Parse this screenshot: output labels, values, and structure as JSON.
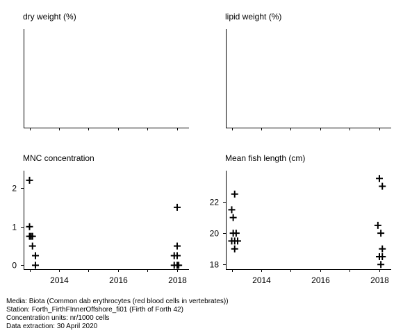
{
  "chart_data": [
    {
      "type": "scatter",
      "title": "dry weight (%)",
      "xlim": [
        2012.8,
        2018.4
      ],
      "xticks": [
        2013,
        2014,
        2015,
        2016,
        2017,
        2018
      ],
      "series": [
        {
          "points": []
        }
      ]
    },
    {
      "type": "scatter",
      "title": "lipid weight (%)",
      "xlim": [
        2012.8,
        2018.4
      ],
      "xticks": [
        2013,
        2014,
        2015,
        2016,
        2017,
        2018
      ],
      "series": [
        {
          "points": []
        }
      ]
    },
    {
      "type": "scatter",
      "title": "MNC concentration",
      "xlim": [
        2012.8,
        2018.4
      ],
      "ylim": [
        -0.1,
        2.45
      ],
      "xticks": [
        2013,
        2014,
        2015,
        2016,
        2017,
        2018
      ],
      "xticklabels": [
        "",
        "2014",
        "",
        "2016",
        "",
        "2018"
      ],
      "yticks": [
        0,
        1,
        2
      ],
      "yticklabels": [
        "0",
        "1",
        "2"
      ],
      "series": [
        {
          "marker": "plus",
          "points": [
            {
              "x": 2013.0,
              "y": 2.2
            },
            {
              "x": 2013.0,
              "y": 1.0
            },
            {
              "x": 2013.0,
              "y": 0.75
            },
            {
              "x": 2013.1,
              "y": 0.75
            },
            {
              "x": 2013.05,
              "y": 0.75
            },
            {
              "x": 2013.1,
              "y": 0.5
            },
            {
              "x": 2013.2,
              "y": 0.25
            },
            {
              "x": 2013.2,
              "y": 0.0
            },
            {
              "x": 2018.0,
              "y": 1.5
            },
            {
              "x": 2018.0,
              "y": 0.5
            },
            {
              "x": 2017.9,
              "y": 0.25
            },
            {
              "x": 2018.0,
              "y": 0.25
            },
            {
              "x": 2017.9,
              "y": 0.0
            },
            {
              "x": 2018.0,
              "y": 0.0
            },
            {
              "x": 2018.05,
              "y": 0.0
            }
          ]
        }
      ]
    },
    {
      "type": "scatter",
      "title": "Mean fish length (cm)",
      "xlim": [
        2012.8,
        2018.4
      ],
      "ylim": [
        17.7,
        24.0
      ],
      "xticks": [
        2013,
        2014,
        2015,
        2016,
        2017,
        2018
      ],
      "xticklabels": [
        "",
        "2014",
        "",
        "2016",
        "",
        "2018"
      ],
      "yticks": [
        18,
        20,
        22
      ],
      "yticklabels": [
        "18",
        "20",
        "22"
      ],
      "series": [
        {
          "marker": "plus",
          "points": [
            {
              "x": 2013.1,
              "y": 22.5
            },
            {
              "x": 2013.0,
              "y": 21.5
            },
            {
              "x": 2013.05,
              "y": 21.0
            },
            {
              "x": 2013.05,
              "y": 20.0
            },
            {
              "x": 2013.15,
              "y": 20.0
            },
            {
              "x": 2013.0,
              "y": 19.5
            },
            {
              "x": 2013.1,
              "y": 19.5
            },
            {
              "x": 2013.2,
              "y": 19.5
            },
            {
              "x": 2013.1,
              "y": 19.0
            },
            {
              "x": 2018.0,
              "y": 23.5
            },
            {
              "x": 2018.1,
              "y": 23.0
            },
            {
              "x": 2017.95,
              "y": 20.5
            },
            {
              "x": 2018.05,
              "y": 20.0
            },
            {
              "x": 2018.1,
              "y": 19.0
            },
            {
              "x": 2018.0,
              "y": 18.5
            },
            {
              "x": 2018.1,
              "y": 18.5
            },
            {
              "x": 2018.05,
              "y": 18.0
            }
          ]
        }
      ]
    }
  ],
  "footer": {
    "media": "Media: Biota (Common dab erythrocytes (red blood cells in vertebrates))",
    "station": "Station: Forth_FirthFInnerOffshore_fi01 (Firth of Forth 42)",
    "units": "Concentration units:  nr/1000 cells",
    "extraction": "Data extraction: 30 April 2020"
  }
}
